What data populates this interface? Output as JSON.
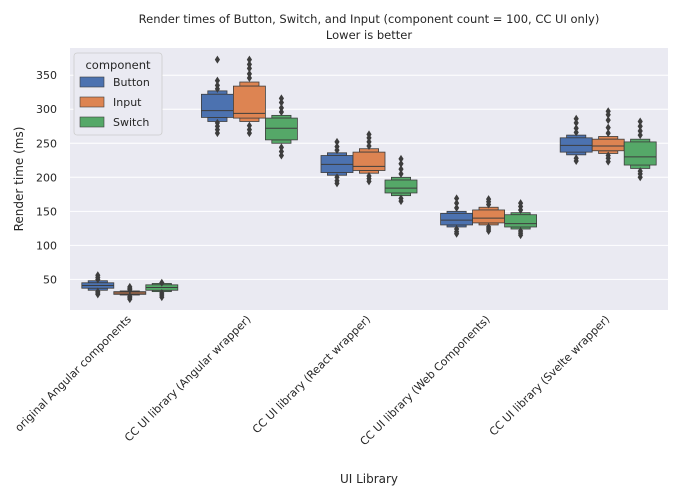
{
  "chart_data": {
    "type": "boxenplot",
    "title": "Render times of Button, Switch, and Input (component count = 100, CC UI only)",
    "subtitle": "Lower is better",
    "xlabel": "UI Library",
    "ylabel": "Render time (ms)",
    "ylim": [
      5,
      390
    ],
    "yticks": [
      50,
      100,
      150,
      200,
      250,
      300,
      350
    ],
    "grid": true,
    "legend": {
      "title": "component",
      "position": "upper-left",
      "entries": [
        "Button",
        "Input",
        "Switch"
      ]
    },
    "categories": [
      "original Angular components",
      "CC UI library (Angular wrapper)",
      "CC UI library (React wrapper)",
      "CC UI library (Web Components)",
      "CC UI library (Svelte wrapper)"
    ],
    "series": [
      {
        "name": "Button",
        "color": "#4c72b0",
        "boxes": [
          {
            "q1": 37,
            "median": 41,
            "q3": 45,
            "whisker_low": 34,
            "whisker_high": 48,
            "outliers": [
              28,
              30,
              32,
              50,
              53,
              56
            ]
          },
          {
            "q1": 288,
            "median": 298,
            "q3": 322,
            "whisker_low": 282,
            "whisker_high": 327,
            "outliers": [
              265,
              270,
              275,
              280,
              330,
              335,
              342,
              373
            ]
          },
          {
            "q1": 207,
            "median": 219,
            "q3": 232,
            "whisker_low": 203,
            "whisker_high": 236,
            "outliers": [
              191,
              195,
              200,
              240,
              245,
              252
            ]
          },
          {
            "q1": 130,
            "median": 137,
            "q3": 147,
            "whisker_low": 127,
            "whisker_high": 150,
            "outliers": [
              117,
              120,
              124,
              155,
              162,
              169
            ]
          },
          {
            "q1": 237,
            "median": 247,
            "q3": 258,
            "whisker_low": 233,
            "whisker_high": 262,
            "outliers": [
              224,
              228,
              266,
              272,
              280,
              286
            ]
          }
        ]
      },
      {
        "name": "Input",
        "color": "#dd8452",
        "boxes": [
          {
            "q1": 28,
            "median": 30,
            "q3": 32,
            "whisker_low": 27,
            "whisker_high": 33,
            "outliers": [
              21,
              23,
              25,
              35,
              37,
              39
            ]
          },
          {
            "q1": 287,
            "median": 294,
            "q3": 334,
            "whisker_low": 282,
            "whisker_high": 340,
            "outliers": [
              265,
              270,
              276,
              346,
              352,
              360,
              366,
              373
            ]
          },
          {
            "q1": 210,
            "median": 216,
            "q3": 237,
            "whisker_low": 206,
            "whisker_high": 242,
            "outliers": [
              194,
              198,
              202,
              246,
              252,
              258,
              263
            ]
          },
          {
            "q1": 133,
            "median": 140,
            "q3": 152,
            "whisker_low": 130,
            "whisker_high": 156,
            "outliers": [
              121,
              124,
              127,
              160,
              164,
              168
            ]
          },
          {
            "q1": 239,
            "median": 246,
            "q3": 256,
            "whisker_low": 235,
            "whisker_high": 260,
            "outliers": [
              223,
              228,
              232,
              265,
              273,
              284,
              292,
              297
            ]
          }
        ]
      },
      {
        "name": "Switch",
        "color": "#55a868",
        "boxes": [
          {
            "q1": 34,
            "median": 38,
            "q3": 42,
            "whisker_low": 32,
            "whisker_high": 44,
            "outliers": [
              24,
              27,
              30,
              45
            ]
          },
          {
            "q1": 255,
            "median": 272,
            "q3": 287,
            "whisker_low": 250,
            "whisker_high": 291,
            "outliers": [
              232,
              238,
              244,
              296,
              302,
              310,
              316
            ]
          },
          {
            "q1": 177,
            "median": 184,
            "q3": 196,
            "whisker_low": 173,
            "whisker_high": 200,
            "outliers": [
              165,
              169,
              205,
              212,
              220,
              227
            ]
          },
          {
            "q1": 127,
            "median": 132,
            "q3": 145,
            "whisker_low": 124,
            "whisker_high": 148,
            "outliers": [
              115,
              118,
              121,
              152,
              157,
              162
            ]
          },
          {
            "q1": 218,
            "median": 230,
            "q3": 252,
            "whisker_low": 213,
            "whisker_high": 256,
            "outliers": [
              200,
              205,
              209,
              262,
              268,
              275,
              282
            ]
          }
        ]
      }
    ]
  }
}
